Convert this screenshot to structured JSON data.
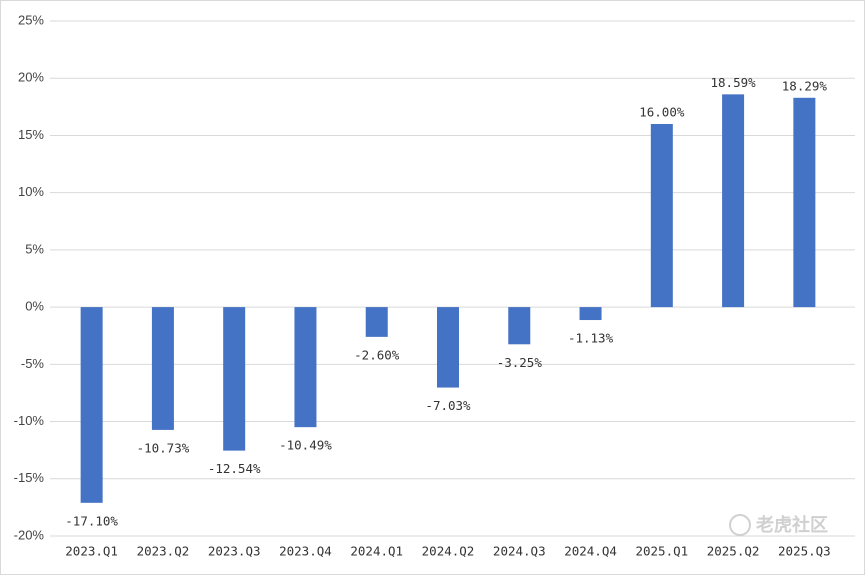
{
  "chart_data": {
    "type": "bar",
    "categories": [
      "2023.Q1",
      "2023.Q2",
      "2023.Q3",
      "2023.Q4",
      "2024.Q1",
      "2024.Q2",
      "2024.Q3",
      "2024.Q4",
      "2025.Q1",
      "2025.Q2",
      "2025.Q3"
    ],
    "values": [
      -17.1,
      -10.73,
      -12.54,
      -10.49,
      -2.6,
      -7.03,
      -3.25,
      -1.13,
      16.0,
      18.59,
      18.29
    ],
    "value_labels": [
      "-17.10%",
      "-10.73%",
      "-12.54%",
      "-10.49%",
      "-2.60%",
      "-7.03%",
      "-3.25%",
      "-1.13%",
      "16.00%",
      "18.59%",
      "18.29%"
    ],
    "color": "#4472c4",
    "ylim": [
      -20,
      25
    ],
    "yticks": [
      {
        "value": -20,
        "label": "-20%"
      },
      {
        "value": -15,
        "label": "-15%"
      },
      {
        "value": -10,
        "label": "-10%"
      },
      {
        "value": -5,
        "label": "-5%"
      },
      {
        "value": 0,
        "label": "0%"
      },
      {
        "value": 5,
        "label": "5%"
      },
      {
        "value": 10,
        "label": "10%"
      },
      {
        "value": 15,
        "label": "15%"
      },
      {
        "value": 20,
        "label": "20%"
      },
      {
        "value": 25,
        "label": "25%"
      }
    ],
    "grid": true,
    "watermark": "老虎社区"
  }
}
